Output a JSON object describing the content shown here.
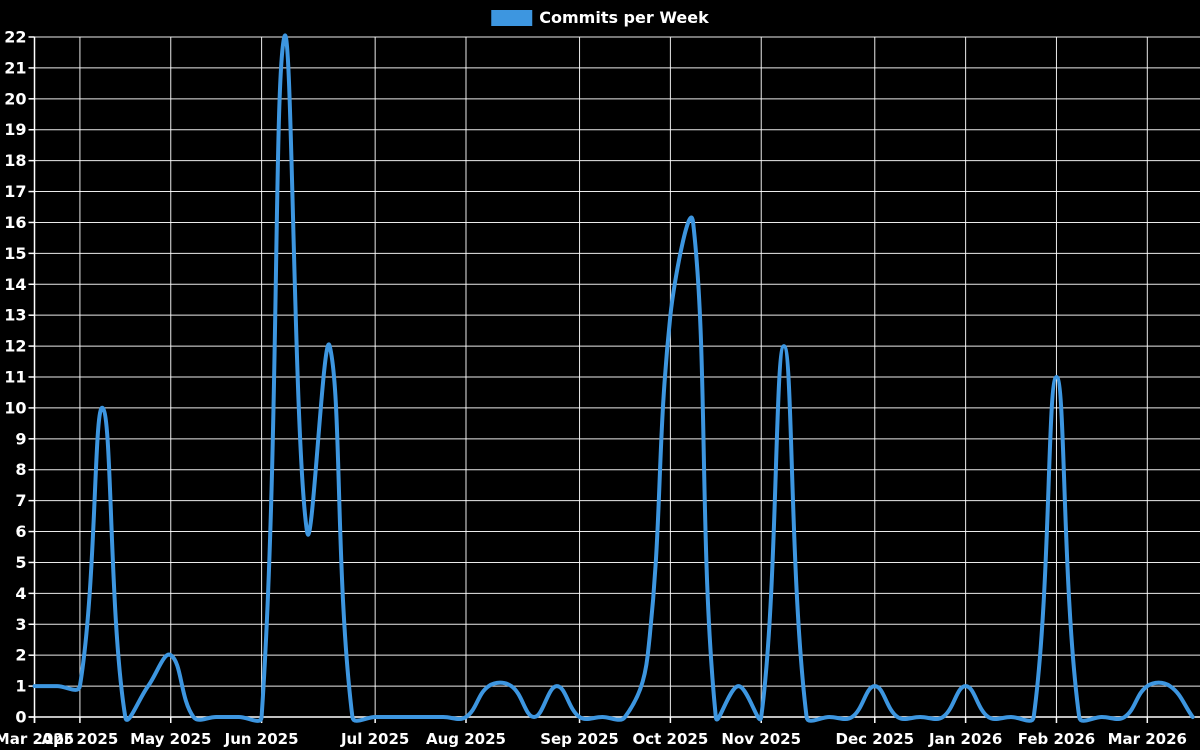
{
  "chart_data": {
    "type": "line",
    "title": "",
    "legend_label": "Commits per Week",
    "x_unit": "week",
    "series": [
      {
        "name": "Commits per Week",
        "color": "#3d96e0",
        "values": [
          1,
          1,
          1,
          10,
          0,
          1,
          2,
          0,
          0,
          0,
          0,
          22,
          6,
          12,
          0,
          0,
          0,
          0,
          0,
          0,
          1,
          1,
          0,
          1,
          0,
          0,
          0,
          2,
          13,
          16,
          0,
          1,
          0,
          12,
          0,
          0,
          0,
          1,
          0,
          0,
          0,
          1,
          0,
          0,
          0,
          11,
          0,
          0,
          0,
          1,
          1,
          0
        ]
      }
    ],
    "x_tick_labels": [
      "Mar 2025",
      "Apr 2025",
      "May 2025",
      "Jun 2025",
      "Jul 2025",
      "Aug 2025",
      "Sep 2025",
      "Oct 2025",
      "Nov 2025",
      "Dec 2025",
      "Jan 2026",
      "Feb 2026",
      "Mar 2026"
    ],
    "x_tick_indices": [
      0,
      2,
      6,
      10,
      15,
      19,
      24,
      28,
      32,
      37,
      41,
      45,
      49
    ],
    "ylabel": "",
    "xlabel": "",
    "ylim": [
      0,
      22
    ],
    "y_tick_step": 1,
    "grid": true,
    "legend_position": "top-center",
    "colors": {
      "background": "#000000",
      "grid": "#ffffff",
      "axis": "#ffffff",
      "text": "#ffffff",
      "line": "#3d96e0"
    }
  }
}
